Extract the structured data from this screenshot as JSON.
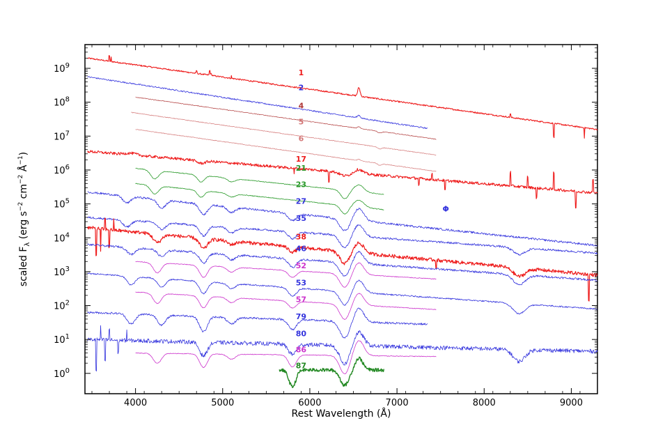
{
  "chart_data": {
    "type": "line",
    "title": "",
    "xlabel": "Rest Wavelength (Å)",
    "ylabel_parts": [
      "scaled F",
      "λ",
      " (erg s",
      "−2",
      " cm",
      "−2",
      " Å",
      "−1",
      ")"
    ],
    "xlim": [
      3420,
      9300
    ],
    "ylim_log10": [
      -0.6,
      9.7
    ],
    "log_y": true,
    "x_ticks": [
      4000,
      5000,
      6000,
      7000,
      8000,
      9000
    ],
    "x_tick_labels": [
      "4000",
      "5000",
      "6000",
      "7000",
      "8000",
      "9000"
    ],
    "y_ticks": [
      {
        "exp": 0,
        "base": "10",
        "sup": "0"
      },
      {
        "exp": 1,
        "base": "10",
        "sup": "1"
      },
      {
        "exp": 2,
        "base": "10",
        "sup": "2"
      },
      {
        "exp": 3,
        "base": "10",
        "sup": "3"
      },
      {
        "exp": 4,
        "base": "10",
        "sup": "4"
      },
      {
        "exp": 5,
        "base": "10",
        "sup": "5"
      },
      {
        "exp": 6,
        "base": "10",
        "sup": "6"
      },
      {
        "exp": 7,
        "base": "10",
        "sup": "7"
      },
      {
        "exp": 8,
        "base": "10",
        "sup": "8"
      },
      {
        "exp": 9,
        "base": "10",
        "sup": "9"
      }
    ],
    "colors": {
      "red": "#ee1c1c",
      "blue": "#3333dd",
      "brown": "#b03a3a",
      "rose": "#d47878",
      "green": "#2a9a2a",
      "magenta": "#cc33cc",
      "dkgreen": "#228822"
    },
    "series": [
      {
        "label": "1",
        "color": "#ee1c1c",
        "width": 1.1,
        "x_range": [
          3450,
          9300
        ],
        "level": 9.3,
        "slope": -1.2,
        "noise": 0.02,
        "features": [
          [
            6563,
            0.25,
            12
          ],
          [
            4861,
            0.05,
            10
          ]
        ],
        "spikes": [
          [
            3700,
            0.15
          ],
          [
            3720,
            0.12
          ],
          [
            4700,
            0.08
          ],
          [
            4850,
            0.1
          ],
          [
            5100,
            0.07
          ],
          [
            8300,
            0.1
          ],
          [
            8800,
            -0.4
          ],
          [
            9150,
            -0.3
          ]
        ],
        "label_wl": 5900,
        "label_log": 8.8
      },
      {
        "label": "2",
        "color": "#3333dd",
        "width": 0.8,
        "x_range": [
          3450,
          7350
        ],
        "level": 8.75,
        "slope": -1.3,
        "noise": 0.02,
        "features": [
          [
            6563,
            0.08,
            15
          ]
        ],
        "label_wl": 5900,
        "label_log": 8.35
      },
      {
        "label": "4",
        "color": "#b03a3a",
        "width": 0.7,
        "x_range": [
          4000,
          7450
        ],
        "level": 8.15,
        "slope": -1.2,
        "noise": 0.01,
        "features": [
          [
            6563,
            0.05,
            12
          ],
          [
            6800,
            -0.05,
            20
          ]
        ],
        "label_wl": 5900,
        "label_log": 7.82
      },
      {
        "label": "5",
        "color": "#d47878",
        "width": 0.7,
        "x_range": [
          3950,
          7450
        ],
        "level": 7.7,
        "slope": -1.2,
        "noise": 0.01,
        "features": [
          [
            6800,
            -0.05,
            20
          ]
        ],
        "label_wl": 5900,
        "label_log": 7.35
      },
      {
        "label": "6",
        "color": "#d47878",
        "width": 0.7,
        "x_range": [
          4000,
          7450
        ],
        "level": 7.2,
        "slope": -1.2,
        "noise": 0.01,
        "features": [
          [
            6563,
            0.04,
            12
          ],
          [
            6800,
            -0.05,
            20
          ]
        ],
        "label_wl": 5900,
        "label_log": 6.85
      },
      {
        "label": "17",
        "color": "#ee1c1c",
        "width": 1.1,
        "x_range": [
          3450,
          9300
        ],
        "level": 6.55,
        "slope": -0.7,
        "noise": 0.04,
        "features": [
          [
            3950,
            0.05,
            60
          ],
          [
            4750,
            -0.08,
            40
          ],
          [
            6400,
            -0.1,
            50
          ],
          [
            6563,
            0.12,
            40
          ]
        ],
        "spikes": [
          [
            5820,
            -0.2
          ],
          [
            6220,
            -0.3
          ],
          [
            7250,
            -0.2
          ],
          [
            7400,
            0.15
          ],
          [
            7550,
            -0.3
          ],
          [
            8300,
            0.4
          ],
          [
            8500,
            0.3
          ],
          [
            8600,
            -0.3
          ],
          [
            8800,
            0.5
          ],
          [
            9050,
            -0.5
          ],
          [
            9250,
            0.4
          ]
        ],
        "label_wl": 5900,
        "label_log": 6.25
      },
      {
        "label": "21",
        "color": "#2a9a2a",
        "width": 0.8,
        "x_range": [
          4000,
          6850
        ],
        "level": 6.05,
        "slope": -0.9,
        "noise": 0.01,
        "features": [
          [
            4220,
            -0.25,
            40
          ],
          [
            4750,
            -0.2,
            35
          ],
          [
            5100,
            -0.1,
            40
          ],
          [
            6400,
            -0.25,
            40
          ],
          [
            6563,
            0.2,
            50
          ]
        ],
        "label_wl": 5900,
        "label_log": 5.98
      },
      {
        "label": "23",
        "color": "#2a9a2a",
        "width": 0.8,
        "x_range": [
          4000,
          6850
        ],
        "level": 5.6,
        "slope": -0.9,
        "noise": 0.01,
        "features": [
          [
            4220,
            -0.25,
            40
          ],
          [
            4750,
            -0.2,
            35
          ],
          [
            5100,
            -0.1,
            40
          ],
          [
            6400,
            -0.25,
            40
          ],
          [
            6563,
            0.2,
            50
          ]
        ],
        "label_wl": 5900,
        "label_log": 5.5
      },
      {
        "label": "27",
        "color": "#3333dd",
        "width": 0.8,
        "x_range": [
          3450,
          9300
        ],
        "level": 5.35,
        "slope": -0.9,
        "noise": 0.03,
        "features": [
          [
            3900,
            -0.2,
            40
          ],
          [
            4300,
            -0.25,
            40
          ],
          [
            4780,
            -0.3,
            40
          ],
          [
            5100,
            -0.15,
            40
          ],
          [
            5800,
            -0.2,
            40
          ],
          [
            6400,
            -0.35,
            50
          ],
          [
            6563,
            0.35,
            50
          ]
        ],
        "label_wl": 5900,
        "label_log": 5.0
      },
      {
        "label": "35",
        "color": "#3333dd",
        "width": 0.8,
        "x_range": [
          3450,
          9300
        ],
        "level": 4.6,
        "slope": -0.6,
        "noise": 0.03,
        "features": [
          [
            3900,
            -0.2,
            40
          ],
          [
            4300,
            -0.2,
            40
          ],
          [
            4780,
            -0.3,
            40
          ],
          [
            5100,
            -0.15,
            40
          ],
          [
            5800,
            -0.2,
            40
          ],
          [
            6400,
            -0.35,
            50
          ],
          [
            6563,
            0.35,
            50
          ],
          [
            8400,
            -0.2,
            60
          ]
        ],
        "label_wl": 5900,
        "label_log": 4.5
      },
      {
        "label": "38",
        "color": "#ee1c1c",
        "width": 1.2,
        "x_range": [
          3450,
          9300
        ],
        "level": 4.3,
        "slope": -0.8,
        "noise": 0.05,
        "features": [
          [
            4250,
            -0.25,
            40
          ],
          [
            4780,
            -0.3,
            40
          ],
          [
            5100,
            -0.1,
            40
          ],
          [
            5800,
            -0.15,
            40
          ],
          [
            6400,
            -0.35,
            50
          ],
          [
            6563,
            0.3,
            50
          ],
          [
            8400,
            -0.25,
            60
          ]
        ],
        "spikes": [
          [
            3550,
            -0.8
          ],
          [
            3600,
            -0.7
          ],
          [
            3650,
            0.3
          ],
          [
            3700,
            -0.5
          ],
          [
            3750,
            0.3
          ],
          [
            7450,
            -0.2
          ],
          [
            9200,
            -0.8
          ]
        ],
        "label_wl": 5900,
        "label_log": 3.95
      },
      {
        "label": "46",
        "color": "#3333dd",
        "width": 0.8,
        "x_range": [
          3450,
          9300
        ],
        "level": 3.8,
        "slope": -0.6,
        "noise": 0.03,
        "features": [
          [
            3950,
            -0.2,
            40
          ],
          [
            4300,
            -0.2,
            40
          ],
          [
            4780,
            -0.3,
            40
          ],
          [
            5100,
            -0.15,
            40
          ],
          [
            5800,
            -0.25,
            40
          ],
          [
            6400,
            -0.4,
            50
          ],
          [
            6563,
            0.35,
            50
          ],
          [
            8400,
            -0.3,
            60
          ]
        ],
        "label_wl": 5900,
        "label_log": 3.6
      },
      {
        "label": "52",
        "color": "#cc33cc",
        "width": 0.8,
        "x_range": [
          4000,
          7450
        ],
        "level": 3.3,
        "slope": -0.5,
        "noise": 0.01,
        "features": [
          [
            4250,
            -0.3,
            40
          ],
          [
            4780,
            -0.35,
            40
          ],
          [
            5100,
            -0.15,
            40
          ],
          [
            5800,
            -0.2,
            40
          ],
          [
            6400,
            -0.4,
            50
          ],
          [
            6563,
            0.35,
            50
          ]
        ],
        "label_wl": 5900,
        "label_log": 3.1
      },
      {
        "label": "53",
        "color": "#3333dd",
        "width": 0.8,
        "x_range": [
          3450,
          9300
        ],
        "level": 2.95,
        "slope": -0.6,
        "noise": 0.02,
        "features": [
          [
            3950,
            -0.25,
            40
          ],
          [
            4300,
            -0.25,
            40
          ],
          [
            4780,
            -0.35,
            40
          ],
          [
            5100,
            -0.15,
            40
          ],
          [
            5800,
            -0.25,
            40
          ],
          [
            6400,
            -0.4,
            50
          ],
          [
            6563,
            0.35,
            50
          ],
          [
            8400,
            -0.3,
            60
          ]
        ],
        "label_wl": 5900,
        "label_log": 2.6
      },
      {
        "label": "57",
        "color": "#cc33cc",
        "width": 0.8,
        "x_range": [
          4000,
          7450
        ],
        "level": 2.4,
        "slope": -0.5,
        "noise": 0.01,
        "features": [
          [
            4250,
            -0.3,
            40
          ],
          [
            4780,
            -0.35,
            40
          ],
          [
            5100,
            -0.15,
            40
          ],
          [
            5800,
            -0.2,
            40
          ],
          [
            6400,
            -0.45,
            50
          ],
          [
            6563,
            0.35,
            50
          ]
        ],
        "label_wl": 5900,
        "label_log": 2.1
      },
      {
        "label": "79",
        "color": "#3333dd",
        "width": 0.8,
        "x_range": [
          3450,
          7350
        ],
        "level": 1.8,
        "slope": -0.3,
        "noise": 0.03,
        "features": [
          [
            3950,
            -0.3,
            40
          ],
          [
            4300,
            -0.3,
            40
          ],
          [
            4780,
            -0.45,
            40
          ],
          [
            5100,
            -0.2,
            40
          ],
          [
            5800,
            -0.3,
            40
          ],
          [
            6400,
            -0.5,
            50
          ],
          [
            6563,
            0.4,
            50
          ]
        ],
        "label_wl": 5900,
        "label_log": 1.6
      },
      {
        "label": "80",
        "color": "#3333dd",
        "width": 0.8,
        "x_range": [
          3450,
          9300
        ],
        "level": 1.0,
        "slope": -0.2,
        "noise": 0.06,
        "features": [
          [
            4780,
            -0.4,
            40
          ],
          [
            5800,
            -0.3,
            40
          ],
          [
            6400,
            -0.55,
            50
          ],
          [
            6563,
            0.4,
            50
          ],
          [
            8400,
            -0.35,
            60
          ]
        ],
        "spikes": [
          [
            3550,
            -0.9
          ],
          [
            3600,
            0.4
          ],
          [
            3650,
            -0.6
          ],
          [
            3700,
            0.3
          ],
          [
            3800,
            -0.4
          ],
          [
            3900,
            0.3
          ]
        ],
        "label_wl": 5900,
        "label_log": 1.1
      },
      {
        "label": "86",
        "color": "#cc33cc",
        "width": 0.8,
        "x_range": [
          4000,
          7450
        ],
        "level": 0.6,
        "slope": -0.1,
        "noise": 0.01,
        "features": [
          [
            4250,
            -0.3,
            40
          ],
          [
            4780,
            -0.4,
            40
          ],
          [
            5100,
            -0.15,
            40
          ],
          [
            5800,
            -0.35,
            40
          ],
          [
            6400,
            -0.55,
            50
          ],
          [
            6563,
            0.45,
            50
          ]
        ],
        "label_wl": 5900,
        "label_log": 0.62
      },
      {
        "label": "87",
        "color": "#228822",
        "width": 1.4,
        "x_range": [
          5650,
          6850
        ],
        "level": 0.1,
        "slope": 0.0,
        "noise": 0.05,
        "features": [
          [
            5800,
            -0.5,
            35
          ],
          [
            6400,
            -0.45,
            45
          ],
          [
            6563,
            0.35,
            40
          ]
        ],
        "label_wl": 5900,
        "label_log": 0.15
      }
    ],
    "annotations": [
      {
        "text": "Φ",
        "x": 7560,
        "y_log": 4.78,
        "color": "#3333dd"
      }
    ]
  }
}
